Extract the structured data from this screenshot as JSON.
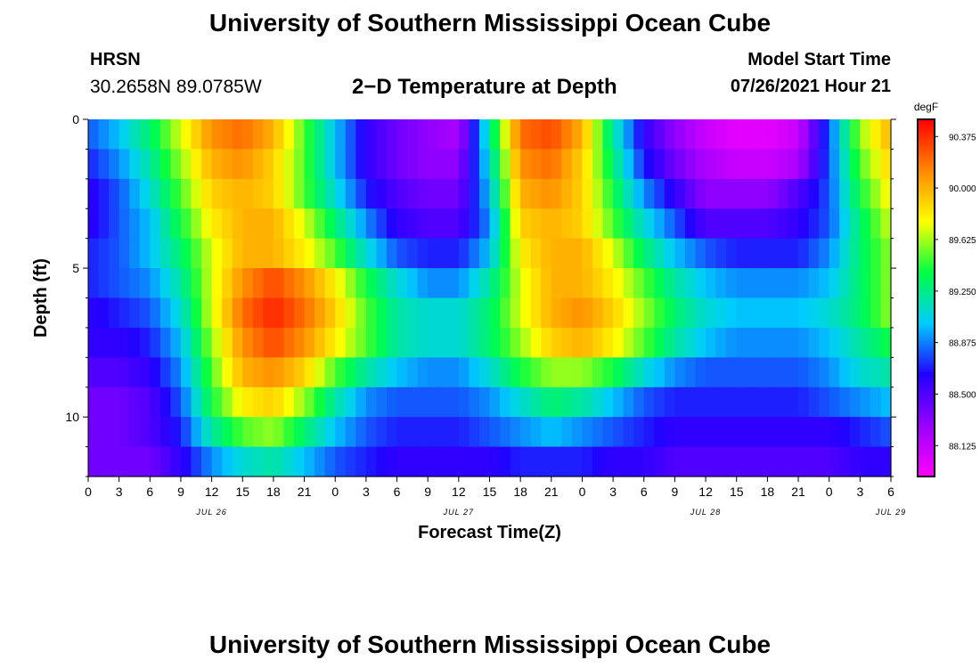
{
  "header": {
    "title": "University of Southern Mississippi Ocean Cube",
    "station": "HRSN",
    "coordinates": "30.2658N  89.0785W",
    "subtitle": "2−D Temperature at Depth",
    "model_start_label": "Model Start Time",
    "model_start_value": "07/26/2021 Hour 21"
  },
  "footer": {
    "title": "University of Southern Mississippi Ocean Cube"
  },
  "chart_data": {
    "type": "heatmap",
    "xlabel": "Forecast Time(Z)",
    "ylabel": "Depth (ft)",
    "x_tick_labels": [
      "0",
      "3",
      "6",
      "9",
      "12",
      "15",
      "18",
      "21",
      "0",
      "3",
      "6",
      "9",
      "12",
      "15",
      "18",
      "21",
      "0",
      "3",
      "6",
      "9",
      "12",
      "15",
      "18",
      "21",
      "0",
      "3",
      "6"
    ],
    "date_labels": [
      {
        "label": "JUL 26",
        "hour": 12
      },
      {
        "label": "JUL 27",
        "hour": 36
      },
      {
        "label": "JUL 28",
        "hour": 60
      },
      {
        "label": "JUL 29",
        "hour": 78
      }
    ],
    "x_range_hours": [
      0,
      78
    ],
    "ylim": [
      0,
      12
    ],
    "y_ticks": [
      0,
      5,
      10
    ],
    "colorbar": {
      "unit": "degF",
      "min": 87.9,
      "max": 90.5,
      "tick_labels": [
        "90.375",
        "90.000",
        "89.625",
        "89.250",
        "88.875",
        "88.500",
        "88.125"
      ],
      "colors": [
        "#ff00ff",
        "#9900ff",
        "#2200ff",
        "#00ccff",
        "#00ff44",
        "#ffff00",
        "#ff8800",
        "#ff0000"
      ]
    },
    "depths": [
      0.5,
      1.5,
      2.5,
      3.5,
      4.5,
      5.5,
      6.5,
      7.5,
      8.5,
      9.5,
      10.5,
      11.5
    ],
    "hours": [
      0,
      3,
      6,
      9,
      12,
      15,
      18,
      21,
      24,
      27,
      30,
      33,
      36,
      39,
      42,
      45,
      48,
      51,
      54,
      57,
      60,
      63,
      66,
      69,
      72,
      75,
      78
    ],
    "values": [
      [
        88.8,
        89.0,
        89.3,
        89.7,
        90.1,
        90.2,
        90.0,
        89.5,
        89.0,
        88.6,
        88.4,
        88.3,
        88.2,
        89.2,
        90.2,
        90.3,
        90.0,
        89.2,
        88.6,
        88.3,
        88.1,
        88.0,
        88.0,
        88.1,
        88.8,
        89.6,
        90.0
      ],
      [
        88.7,
        88.9,
        89.2,
        89.6,
        90.0,
        90.1,
        89.9,
        89.5,
        89.0,
        88.6,
        88.4,
        88.3,
        88.3,
        89.1,
        90.1,
        90.2,
        89.9,
        89.3,
        88.7,
        88.4,
        88.2,
        88.1,
        88.1,
        88.2,
        88.8,
        89.5,
        89.9
      ],
      [
        88.6,
        88.8,
        89.1,
        89.5,
        89.9,
        90.0,
        89.9,
        89.5,
        89.1,
        88.7,
        88.5,
        88.4,
        88.4,
        89.0,
        90.0,
        90.1,
        89.9,
        89.4,
        88.9,
        88.6,
        88.3,
        88.3,
        88.3,
        88.5,
        88.8,
        89.4,
        89.8
      ],
      [
        88.6,
        88.8,
        89.0,
        89.4,
        89.8,
        90.0,
        90.0,
        89.7,
        89.3,
        88.9,
        88.6,
        88.5,
        88.5,
        88.9,
        89.9,
        90.0,
        89.9,
        89.5,
        89.1,
        88.8,
        88.5,
        88.5,
        88.5,
        88.6,
        88.8,
        89.3,
        89.7
      ],
      [
        88.7,
        88.8,
        89.0,
        89.3,
        89.7,
        90.0,
        90.0,
        89.8,
        89.5,
        89.1,
        88.8,
        88.7,
        88.7,
        89.0,
        89.8,
        90.0,
        90.0,
        89.7,
        89.3,
        89.0,
        88.8,
        88.7,
        88.7,
        88.7,
        88.9,
        89.3,
        89.6
      ],
      [
        88.7,
        88.8,
        88.9,
        89.2,
        89.7,
        90.1,
        90.3,
        90.1,
        89.8,
        89.4,
        89.1,
        88.9,
        88.9,
        89.2,
        89.7,
        90.0,
        90.0,
        89.8,
        89.5,
        89.2,
        89.0,
        88.9,
        88.9,
        88.9,
        89.0,
        89.3,
        89.6
      ],
      [
        88.6,
        88.7,
        88.8,
        89.1,
        89.7,
        90.2,
        90.4,
        90.2,
        89.9,
        89.5,
        89.2,
        89.1,
        89.1,
        89.3,
        89.7,
        90.0,
        90.1,
        89.9,
        89.6,
        89.3,
        89.1,
        89.0,
        89.0,
        89.0,
        89.1,
        89.3,
        89.6
      ],
      [
        88.6,
        88.6,
        88.7,
        89.0,
        89.6,
        90.1,
        90.3,
        90.1,
        89.8,
        89.5,
        89.2,
        89.1,
        89.1,
        89.3,
        89.6,
        89.9,
        90.0,
        89.8,
        89.5,
        89.2,
        89.0,
        88.9,
        88.9,
        88.9,
        89.0,
        89.2,
        89.4
      ],
      [
        88.5,
        88.5,
        88.6,
        88.9,
        89.5,
        90.0,
        90.1,
        89.9,
        89.5,
        89.2,
        89.0,
        88.9,
        88.9,
        89.1,
        89.4,
        89.6,
        89.6,
        89.4,
        89.1,
        88.9,
        88.8,
        88.8,
        88.8,
        88.8,
        88.9,
        89.1,
        89.2
      ],
      [
        88.4,
        88.4,
        88.5,
        88.8,
        89.4,
        89.8,
        89.9,
        89.6,
        89.2,
        88.9,
        88.8,
        88.8,
        88.8,
        88.9,
        89.1,
        89.3,
        89.2,
        89.0,
        88.8,
        88.7,
        88.7,
        88.7,
        88.7,
        88.7,
        88.8,
        88.9,
        89.0
      ],
      [
        88.4,
        88.4,
        88.5,
        88.7,
        89.2,
        89.5,
        89.6,
        89.3,
        89.0,
        88.8,
        88.7,
        88.7,
        88.7,
        88.8,
        88.9,
        89.0,
        88.9,
        88.8,
        88.7,
        88.6,
        88.6,
        88.6,
        88.6,
        88.6,
        88.6,
        88.7,
        88.8
      ],
      [
        88.4,
        88.4,
        88.4,
        88.6,
        88.9,
        89.1,
        89.2,
        89.0,
        88.8,
        88.7,
        88.6,
        88.6,
        88.6,
        88.6,
        88.7,
        88.7,
        88.7,
        88.6,
        88.6,
        88.5,
        88.5,
        88.5,
        88.5,
        88.5,
        88.5,
        88.6,
        88.6
      ]
    ]
  }
}
